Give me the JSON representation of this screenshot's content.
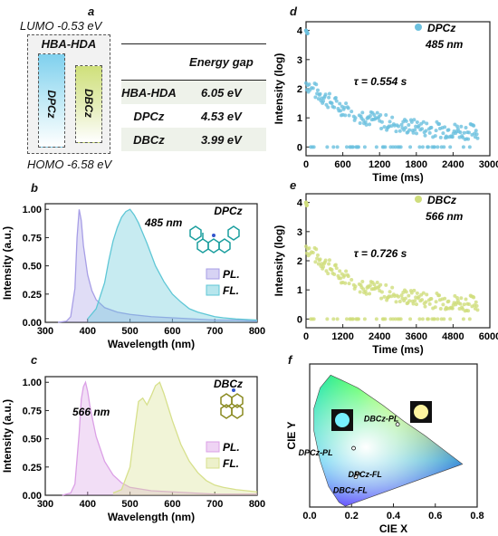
{
  "panel_labels": {
    "a": "a",
    "b": "b",
    "c": "c",
    "d": "d",
    "e": "e",
    "f": "f"
  },
  "panel_a": {
    "lumo": "LUMO -0.53 eV",
    "homo": "HOMO -6.58 eV",
    "box_title": "HBA-HDA",
    "bar1": "DPCz",
    "bar2": "DBCz",
    "bar1_color": "#7fd0ee",
    "bar2_color": "#cfe07a",
    "table": {
      "header": [
        "",
        "Energy gap"
      ],
      "rows": [
        {
          "name": "HBA-HDA",
          "value": "6.05 eV"
        },
        {
          "name": "DPCz",
          "value": "4.53 eV"
        },
        {
          "name": "DBCz",
          "value": "3.99 eV"
        }
      ]
    }
  },
  "chart_data": [
    {
      "panel": "b",
      "type": "area",
      "xlabel": "Wavelength (nm)",
      "ylabel": "Intensity (a.u.)",
      "xlim": [
        300,
        800
      ],
      "ylim": [
        0,
        1.05
      ],
      "xticks": [
        300,
        400,
        500,
        600,
        700,
        800
      ],
      "yticks": [
        0.0,
        0.25,
        0.5,
        0.75,
        1.0
      ],
      "compound": "DPCz",
      "annotation": "485 nm",
      "legend": [
        "PL.",
        "FL."
      ],
      "series": [
        {
          "name": "PL.",
          "color": "#a79ee6",
          "x": [
            330,
            350,
            360,
            370,
            375,
            380,
            385,
            390,
            400,
            410,
            420,
            440,
            470,
            500,
            550,
            600,
            650,
            700,
            750,
            800
          ],
          "values": [
            0,
            0.01,
            0.05,
            0.3,
            0.75,
            1.0,
            0.9,
            0.68,
            0.42,
            0.28,
            0.2,
            0.13,
            0.09,
            0.07,
            0.05,
            0.04,
            0.03,
            0.02,
            0.02,
            0.01
          ]
        },
        {
          "name": "FL.",
          "color": "#5fc7d6",
          "x": [
            400,
            420,
            440,
            450,
            460,
            470,
            480,
            490,
            500,
            510,
            520,
            540,
            560,
            580,
            600,
            620,
            640,
            660,
            680,
            700,
            720,
            750,
            800
          ],
          "values": [
            0.03,
            0.12,
            0.35,
            0.55,
            0.72,
            0.84,
            0.93,
            0.98,
            1.0,
            0.95,
            0.88,
            0.7,
            0.5,
            0.36,
            0.25,
            0.18,
            0.12,
            0.09,
            0.07,
            0.05,
            0.04,
            0.03,
            0.02
          ]
        }
      ]
    },
    {
      "panel": "c",
      "type": "area",
      "xlabel": "Wavelength (nm)",
      "ylabel": "Intensity (a.u.)",
      "xlim": [
        300,
        800
      ],
      "ylim": [
        0,
        1.05
      ],
      "xticks": [
        300,
        400,
        500,
        600,
        700,
        800
      ],
      "yticks": [
        0.0,
        0.25,
        0.5,
        0.75,
        1.0
      ],
      "compound": "DBCz",
      "annotation": "566 nm",
      "legend": [
        "PL.",
        "FL."
      ],
      "series": [
        {
          "name": "PL.",
          "color": "#dba0e6",
          "x": [
            340,
            360,
            370,
            380,
            385,
            390,
            395,
            400,
            405,
            410,
            420,
            440,
            460,
            480,
            500,
            550,
            600,
            700,
            800
          ],
          "values": [
            0,
            0.02,
            0.1,
            0.55,
            0.85,
            0.96,
            1.0,
            0.92,
            0.8,
            0.7,
            0.52,
            0.3,
            0.18,
            0.11,
            0.07,
            0.04,
            0.03,
            0.01,
            0.01
          ]
        },
        {
          "name": "FL.",
          "color": "#d7e08c",
          "x": [
            460,
            480,
            500,
            510,
            520,
            530,
            540,
            550,
            560,
            570,
            580,
            600,
            620,
            640,
            660,
            680,
            700,
            720,
            750,
            800
          ],
          "values": [
            0.02,
            0.05,
            0.25,
            0.55,
            0.83,
            0.86,
            0.8,
            0.88,
            0.97,
            1.0,
            0.9,
            0.66,
            0.45,
            0.3,
            0.2,
            0.13,
            0.09,
            0.07,
            0.05,
            0.03
          ]
        }
      ]
    },
    {
      "panel": "d",
      "type": "scatter",
      "xlabel": "Time (ms)",
      "ylabel": "Intensity (log)",
      "xlim": [
        0,
        3000
      ],
      "ylim": [
        -0.3,
        4.3
      ],
      "xticks": [
        0,
        600,
        1200,
        1800,
        2400,
        3000
      ],
      "yticks": [
        0,
        1,
        2,
        3,
        4
      ],
      "series_name": "DPCz",
      "wavelength": "485 nm",
      "tau": "τ = 0.554 s",
      "color": "#6cc0de",
      "decay": {
        "start": 2.2,
        "end": 0.45,
        "tmax": 2800,
        "floor": 0
      }
    },
    {
      "panel": "e",
      "type": "scatter",
      "xlabel": "Time (ms)",
      "ylabel": "Intensity (log)",
      "xlim": [
        0,
        6000
      ],
      "ylim": [
        -0.3,
        4.3
      ],
      "xticks": [
        0,
        1200,
        2400,
        3600,
        4800,
        6000
      ],
      "yticks": [
        0,
        1,
        2,
        3,
        4
      ],
      "series_name": "DBCz",
      "wavelength": "566 nm",
      "tau": "τ = 0.726 s",
      "color": "#cfdd7c",
      "decay": {
        "start": 2.5,
        "end": 0.45,
        "tmax": 5600,
        "floor": 0
      }
    },
    {
      "panel": "f",
      "type": "scatter",
      "xlabel": "CIE X",
      "ylabel": "CIE Y",
      "xlim": [
        0,
        0.8
      ],
      "ylim": [
        0,
        0.9
      ],
      "xticks": [
        0.0,
        0.2,
        0.4,
        0.6,
        0.8
      ],
      "yticks": [],
      "points": [
        {
          "label": "DBCz-PL",
          "x": 0.42,
          "y": 0.52
        },
        {
          "label": "DPCz-PL",
          "x": 0.21,
          "y": 0.37
        },
        {
          "label": "DPCz-FL",
          "x": 0.23,
          "y": 0.21
        },
        {
          "label": "DBCz-FL",
          "x": 0.22,
          "y": 0.19
        }
      ]
    }
  ]
}
